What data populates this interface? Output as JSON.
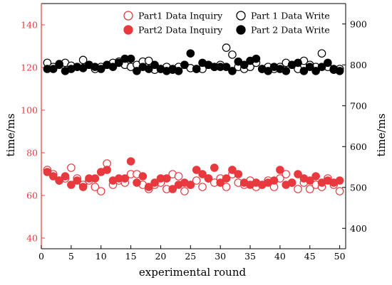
{
  "chart_data": {
    "type": "scatter",
    "title": "",
    "xlabel": "experimental round",
    "ylabel_left": "time/ms",
    "ylabel_right": "time/ms",
    "xlim": [
      0,
      51
    ],
    "ylim_left": [
      35,
      150
    ],
    "ylim_right": [
      350,
      950
    ],
    "x_ticks": [
      0,
      5,
      10,
      15,
      20,
      25,
      30,
      35,
      40,
      45,
      50
    ],
    "y_left_ticks": [
      40,
      60,
      80,
      100,
      120,
      140
    ],
    "y_right_ticks": [
      400,
      500,
      600,
      700,
      800,
      900
    ],
    "colors": {
      "left_axis": "#e8393f",
      "right_axis": "#000000",
      "inquiry": "#e8393f",
      "write": "#000000"
    },
    "legend_position": "top-right",
    "series": [
      {
        "name": "Part1 Data Inquiry",
        "axis": "left",
        "marker": "open",
        "color": "#e8393f",
        "x": [
          1,
          2,
          3,
          4,
          5,
          6,
          7,
          8,
          9,
          10,
          11,
          12,
          13,
          14,
          15,
          16,
          17,
          18,
          19,
          20,
          21,
          22,
          23,
          24,
          25,
          26,
          27,
          28,
          29,
          30,
          31,
          32,
          33,
          34,
          35,
          36,
          37,
          38,
          39,
          40,
          41,
          42,
          43,
          44,
          45,
          46,
          47,
          48,
          49,
          50
        ],
        "y": [
          72,
          70,
          67,
          68,
          73,
          68,
          65,
          67,
          64,
          62,
          75,
          65,
          67,
          66,
          70,
          70,
          65,
          63,
          65,
          66,
          63,
          70,
          69,
          62,
          65,
          67,
          64,
          68,
          66,
          68,
          64,
          70,
          66,
          65,
          67,
          64,
          65,
          67,
          64,
          68,
          70,
          66,
          63,
          66,
          63,
          65,
          64,
          68,
          65,
          62
        ]
      },
      {
        "name": "Part2 Data Inquiry",
        "axis": "left",
        "marker": "filled",
        "color": "#e8393f",
        "x": [
          1,
          2,
          3,
          4,
          5,
          6,
          7,
          8,
          9,
          10,
          11,
          12,
          13,
          14,
          15,
          16,
          17,
          18,
          19,
          20,
          21,
          22,
          23,
          24,
          25,
          26,
          27,
          28,
          29,
          30,
          31,
          32,
          33,
          34,
          35,
          36,
          37,
          38,
          39,
          40,
          41,
          42,
          43,
          44,
          45,
          46,
          47,
          48,
          49,
          50
        ],
        "y": [
          71,
          69,
          67,
          69,
          65,
          67,
          64,
          68,
          68,
          71,
          72,
          67,
          68,
          68,
          76,
          66,
          69,
          64,
          66,
          68,
          68,
          63,
          65,
          66,
          65,
          72,
          70,
          68,
          73,
          66,
          68,
          72,
          70,
          66,
          65,
          66,
          65,
          66,
          67,
          72,
          65,
          66,
          70,
          68,
          67,
          69,
          66,
          67,
          66,
          67
        ]
      },
      {
        "name": "Part 1 Data Write",
        "axis": "right",
        "marker": "open",
        "color": "#000000",
        "x": [
          1,
          2,
          3,
          4,
          5,
          6,
          7,
          8,
          9,
          10,
          11,
          12,
          13,
          14,
          15,
          16,
          17,
          18,
          19,
          20,
          21,
          22,
          23,
          24,
          25,
          26,
          27,
          28,
          29,
          30,
          31,
          32,
          33,
          34,
          35,
          36,
          37,
          38,
          39,
          40,
          41,
          42,
          43,
          44,
          45,
          46,
          47,
          48,
          49,
          50
        ],
        "y": [
          805,
          795,
          800,
          805,
          798,
          795,
          812,
          800,
          790,
          795,
          800,
          805,
          808,
          800,
          795,
          800,
          808,
          810,
          788,
          790,
          795,
          788,
          795,
          800,
          792,
          790,
          790,
          800,
          795,
          800,
          842,
          825,
          795,
          790,
          795,
          805,
          790,
          795,
          790,
          795,
          805,
          800,
          790,
          810,
          800,
          795,
          828,
          795,
          788,
          790
        ]
      },
      {
        "name": "Part 2 Data Write",
        "axis": "right",
        "marker": "filled",
        "color": "#000000",
        "x": [
          1,
          2,
          3,
          4,
          5,
          6,
          7,
          8,
          9,
          10,
          11,
          12,
          13,
          14,
          15,
          16,
          17,
          18,
          19,
          20,
          21,
          22,
          23,
          24,
          25,
          26,
          27,
          28,
          29,
          30,
          31,
          32,
          33,
          34,
          35,
          36,
          37,
          38,
          39,
          40,
          41,
          42,
          43,
          44,
          45,
          46,
          47,
          48,
          49,
          50
        ],
        "y": [
          790,
          790,
          802,
          785,
          790,
          795,
          792,
          800,
          795,
          790,
          800,
          795,
          805,
          815,
          815,
          785,
          795,
          790,
          800,
          790,
          785,
          790,
          785,
          800,
          828,
          790,
          805,
          800,
          795,
          795,
          795,
          785,
          808,
          800,
          810,
          815,
          790,
          785,
          795,
          790,
          785,
          800,
          805,
          785,
          795,
          785,
          795,
          805,
          790,
          785
        ]
      }
    ]
  }
}
